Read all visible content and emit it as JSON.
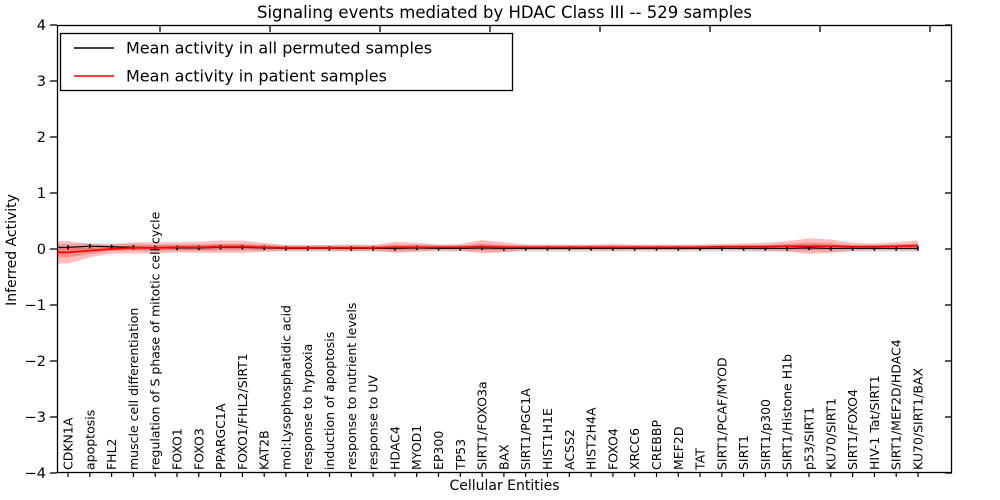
{
  "chart_data": {
    "type": "line",
    "title": "Signaling events mediated by HDAC Class III -- 529 samples",
    "xlabel": "Cellular Entities",
    "ylabel": "Inferred Activity",
    "ylim": [
      -4,
      4
    ],
    "yticks": [
      -4,
      -3,
      -2,
      -1,
      0,
      1,
      2,
      3,
      4
    ],
    "grid": false,
    "legend_position": "upper left",
    "categories": [
      "CDKN1A",
      "apoptosis",
      "FHL2",
      "muscle cell differentiation",
      "regulation of S phase of mitotic cell cycle",
      "FOXO1",
      "FOXO3",
      "PPARGC1A",
      "FOXO1/FHL2/SIRT1",
      "KAT2B",
      "mol:Lysophosphatidic acid",
      "response to hypoxia",
      "induction of apoptosis",
      "response to nutrient levels",
      "response to UV",
      "HDAC4",
      "MYOD1",
      "EP300",
      "TP53",
      "SIRT1/FOXO3a",
      "BAX",
      "SIRT1/PGC1A",
      "HIST1H1E",
      "ACSS2",
      "HIST2H4A",
      "FOXO4",
      "XRCC6",
      "CREBBP",
      "MEF2D",
      "TAT",
      "SIRT1/PCAF/MYOD",
      "SIRT1",
      "SIRT1/p300",
      "SIRT1/Histone H1b",
      "p53/SIRT1",
      "KU70/SIRT1",
      "SIRT1/FOXO4",
      "HIV-1 Tat/SIRT1",
      "SIRT1/MEF2D/HDAC4",
      "KU70/SIRT1/BAX"
    ],
    "series": [
      {
        "name": "Mean activity in all permuted samples",
        "color": "#000000",
        "values": [
          0.03,
          0.05,
          0.04,
          0.03,
          0.02,
          0.02,
          0.02,
          0.03,
          0.03,
          0.02,
          0.01,
          0.01,
          0.01,
          0.01,
          0.01,
          0.01,
          0.02,
          0.01,
          0.01,
          0.02,
          0.01,
          0.01,
          0.01,
          0.01,
          0.01,
          0.01,
          0.01,
          0.01,
          0.01,
          0.01,
          0.01,
          0.01,
          0.01,
          0.01,
          0.02,
          0.01,
          0.01,
          0.01,
          0.01,
          0.01
        ],
        "band_halfwidth": [
          0.06,
          0.06,
          0.06,
          0.06,
          0.06,
          0.06,
          0.06,
          0.06,
          0.06,
          0.06,
          0.06,
          0.06,
          0.06,
          0.06,
          0.06,
          0.06,
          0.06,
          0.06,
          0.06,
          0.06,
          0.06,
          0.06,
          0.06,
          0.06,
          0.06,
          0.06,
          0.06,
          0.06,
          0.06,
          0.06,
          0.06,
          0.06,
          0.06,
          0.06,
          0.06,
          0.06,
          0.06,
          0.06,
          0.06,
          0.06
        ]
      },
      {
        "name": "Mean activity in patient samples",
        "color": "#ff0000",
        "values": [
          -0.06,
          -0.03,
          0.0,
          0.02,
          0.02,
          0.03,
          0.03,
          0.04,
          0.04,
          0.03,
          0.02,
          0.02,
          0.02,
          0.02,
          0.02,
          0.03,
          0.03,
          0.03,
          0.03,
          0.04,
          0.03,
          0.03,
          0.03,
          0.03,
          0.03,
          0.03,
          0.03,
          0.03,
          0.03,
          0.03,
          0.04,
          0.04,
          0.04,
          0.05,
          0.05,
          0.05,
          0.04,
          0.04,
          0.05,
          0.06
        ],
        "band_halfwidth": [
          0.2,
          0.12,
          0.08,
          0.1,
          0.1,
          0.09,
          0.1,
          0.11,
          0.11,
          0.08,
          0.05,
          0.05,
          0.05,
          0.06,
          0.05,
          0.1,
          0.08,
          0.05,
          0.06,
          0.12,
          0.09,
          0.05,
          0.05,
          0.05,
          0.05,
          0.06,
          0.05,
          0.05,
          0.05,
          0.05,
          0.05,
          0.06,
          0.07,
          0.09,
          0.14,
          0.12,
          0.07,
          0.06,
          0.07,
          0.09
        ]
      }
    ]
  }
}
